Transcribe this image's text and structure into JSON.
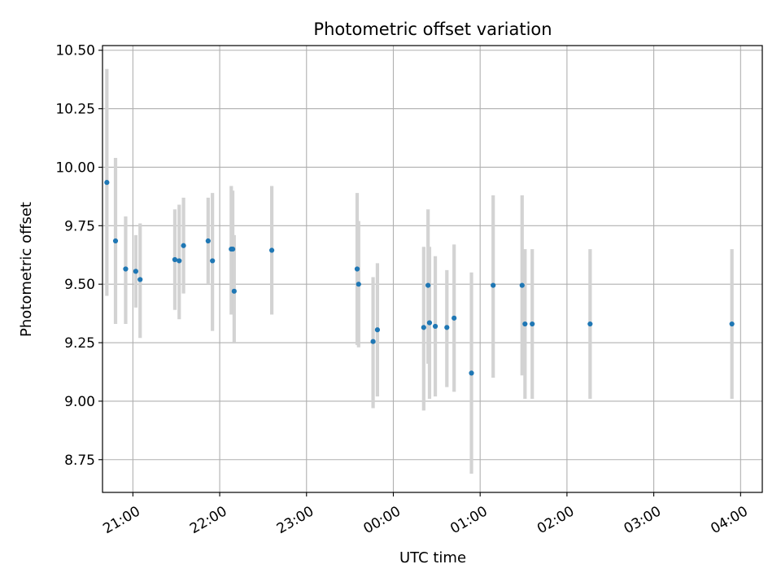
{
  "chart_data": {
    "type": "scatter",
    "title": "Photometric offset variation",
    "xlabel": "UTC time",
    "ylabel": "Photometric offset",
    "x_axis": {
      "type": "time",
      "min_hours": 20.65,
      "max_hours": 28.25
    },
    "xlim": [
      "20:39",
      "04:15"
    ],
    "ylim": [
      8.61,
      10.52
    ],
    "xticks": [
      {
        "hours": 21,
        "label": "21:00"
      },
      {
        "hours": 22,
        "label": "22:00"
      },
      {
        "hours": 23,
        "label": "23:00"
      },
      {
        "hours": 24,
        "label": "00:00"
      },
      {
        "hours": 25,
        "label": "01:00"
      },
      {
        "hours": 26,
        "label": "02:00"
      },
      {
        "hours": 27,
        "label": "03:00"
      },
      {
        "hours": 28,
        "label": "04:00"
      }
    ],
    "yticks": [
      {
        "value": 8.75,
        "label": "8.75"
      },
      {
        "value": 9.0,
        "label": "9.00"
      },
      {
        "value": 9.25,
        "label": "9.25"
      },
      {
        "value": 9.5,
        "label": "9.50"
      },
      {
        "value": 9.75,
        "label": "9.75"
      },
      {
        "value": 10.0,
        "label": "10.00"
      },
      {
        "value": 10.25,
        "label": "10.25"
      },
      {
        "value": 10.5,
        "label": "10.50"
      }
    ],
    "grid": true,
    "colors": {
      "point": "#1f77b4",
      "errorbar": "#d3d3d3",
      "grid": "#b0b0b0",
      "axes": "#000000"
    },
    "points": [
      {
        "x": "20:42",
        "y": 9.935,
        "ylow": 9.45,
        "yhigh": 10.42
      },
      {
        "x": "20:48",
        "y": 9.685,
        "ylow": 9.33,
        "yhigh": 10.04
      },
      {
        "x": "20:55",
        "y": 9.565,
        "ylow": 9.33,
        "yhigh": 9.79
      },
      {
        "x": "21:02",
        "y": 9.555,
        "ylow": 9.4,
        "yhigh": 9.71
      },
      {
        "x": "21:05",
        "y": 9.52,
        "ylow": 9.27,
        "yhigh": 9.76
      },
      {
        "x": "21:29",
        "y": 9.605,
        "ylow": 9.39,
        "yhigh": 9.82
      },
      {
        "x": "21:32",
        "y": 9.6,
        "ylow": 9.35,
        "yhigh": 9.84
      },
      {
        "x": "21:35",
        "y": 9.665,
        "ylow": 9.46,
        "yhigh": 9.87
      },
      {
        "x": "21:52",
        "y": 9.685,
        "ylow": 9.5,
        "yhigh": 9.87
      },
      {
        "x": "21:55",
        "y": 9.6,
        "ylow": 9.3,
        "yhigh": 9.89
      },
      {
        "x": "22:08",
        "y": 9.65,
        "ylow": 9.37,
        "yhigh": 9.92
      },
      {
        "x": "22:09",
        "y": 9.65,
        "ylow": 9.4,
        "yhigh": 9.9
      },
      {
        "x": "22:10",
        "y": 9.47,
        "ylow": 9.25,
        "yhigh": 9.71
      },
      {
        "x": "22:36",
        "y": 9.645,
        "ylow": 9.37,
        "yhigh": 9.92
      },
      {
        "x": "23:35",
        "y": 9.565,
        "ylow": 9.24,
        "yhigh": 9.89
      },
      {
        "x": "23:36",
        "y": 9.5,
        "ylow": 9.23,
        "yhigh": 9.77
      },
      {
        "x": "23:46",
        "y": 9.255,
        "ylow": 8.97,
        "yhigh": 9.53
      },
      {
        "x": "23:49",
        "y": 9.305,
        "ylow": 9.02,
        "yhigh": 9.59
      },
      {
        "x": "00:21",
        "y": 9.315,
        "ylow": 8.96,
        "yhigh": 9.66
      },
      {
        "x": "00:24",
        "y": 9.495,
        "ylow": 9.16,
        "yhigh": 9.82
      },
      {
        "x": "00:25",
        "y": 9.335,
        "ylow": 9.01,
        "yhigh": 9.66
      },
      {
        "x": "00:29",
        "y": 9.32,
        "ylow": 9.02,
        "yhigh": 9.62
      },
      {
        "x": "00:37",
        "y": 9.315,
        "ylow": 9.06,
        "yhigh": 9.56
      },
      {
        "x": "00:42",
        "y": 9.355,
        "ylow": 9.04,
        "yhigh": 9.67
      },
      {
        "x": "00:54",
        "y": 9.12,
        "ylow": 8.69,
        "yhigh": 9.55
      },
      {
        "x": "01:09",
        "y": 9.495,
        "ylow": 9.1,
        "yhigh": 9.88
      },
      {
        "x": "01:29",
        "y": 9.495,
        "ylow": 9.11,
        "yhigh": 9.88
      },
      {
        "x": "01:31",
        "y": 9.33,
        "ylow": 9.01,
        "yhigh": 9.65
      },
      {
        "x": "01:36",
        "y": 9.33,
        "ylow": 9.01,
        "yhigh": 9.65
      },
      {
        "x": "02:16",
        "y": 9.33,
        "ylow": 9.01,
        "yhigh": 9.65
      },
      {
        "x": "03:54",
        "y": 9.33,
        "ylow": 9.01,
        "yhigh": 9.65
      }
    ]
  }
}
